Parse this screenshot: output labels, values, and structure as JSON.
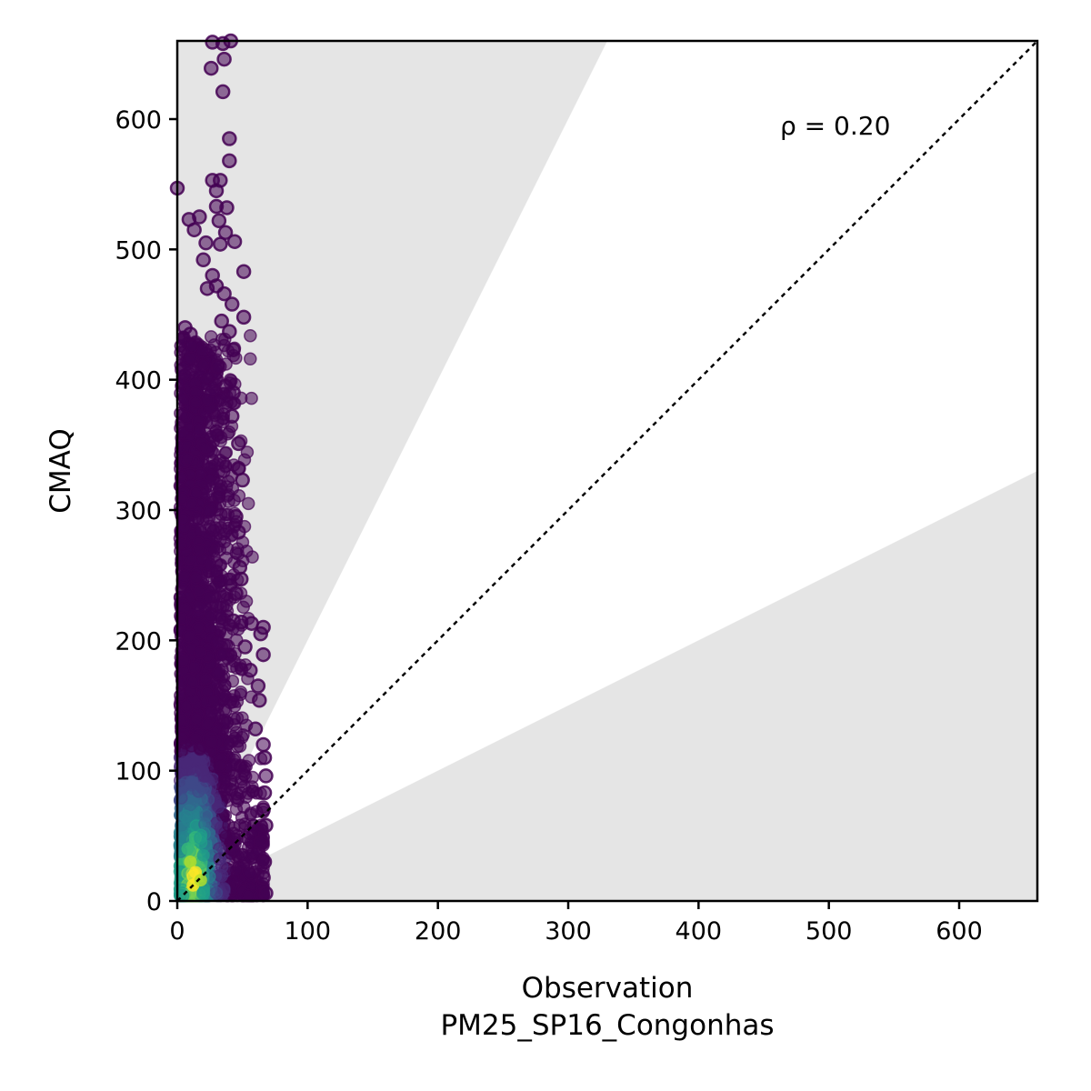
{
  "chart_data": {
    "type": "scatter",
    "title": "",
    "xlabel": "Observation",
    "xlabel_sub": "PM25_SP16_Congonhas",
    "ylabel": "CMAQ",
    "xlim": [
      0,
      660
    ],
    "ylim": [
      0,
      660
    ],
    "x_ticks": [
      0,
      100,
      200,
      300,
      400,
      500,
      600
    ],
    "y_ticks": [
      0,
      100,
      200,
      300,
      400,
      500,
      600
    ],
    "annotation": "ρ = 0.20",
    "reference_line": {
      "type": "identity",
      "style": "dotted",
      "color": "#000000"
    },
    "factor_of_two_band": {
      "upper_slope": 2,
      "lower_slope": 0.5,
      "shaded_outside": true,
      "shade_color": "#e5e5e5"
    },
    "colormap": "viridis",
    "grid": false,
    "legend": "none",
    "points": [
      {
        "x": 0,
        "y": 547,
        "density": 0
      },
      {
        "x": 9,
        "y": 523,
        "density": 0
      },
      {
        "x": 13,
        "y": 515,
        "density": 0
      },
      {
        "x": 17,
        "y": 525,
        "density": 0
      },
      {
        "x": 20,
        "y": 492,
        "density": 0
      },
      {
        "x": 27,
        "y": 553,
        "density": 0
      },
      {
        "x": 30,
        "y": 545,
        "density": 0
      },
      {
        "x": 33,
        "y": 553,
        "density": 0
      },
      {
        "x": 27,
        "y": 659,
        "density": 0
      },
      {
        "x": 35,
        "y": 658,
        "density": 0
      },
      {
        "x": 41,
        "y": 660,
        "density": 0
      },
      {
        "x": 26,
        "y": 639,
        "density": 0
      },
      {
        "x": 36,
        "y": 646,
        "density": 0
      },
      {
        "x": 35,
        "y": 621,
        "density": 0
      },
      {
        "x": 40,
        "y": 585,
        "density": 0
      },
      {
        "x": 40,
        "y": 568,
        "density": 0
      },
      {
        "x": 30,
        "y": 533,
        "density": 0
      },
      {
        "x": 38,
        "y": 532,
        "density": 0
      },
      {
        "x": 32,
        "y": 522,
        "density": 0
      },
      {
        "x": 37,
        "y": 513,
        "density": 0
      },
      {
        "x": 44,
        "y": 506,
        "density": 0
      },
      {
        "x": 22,
        "y": 505,
        "density": 0
      },
      {
        "x": 33,
        "y": 504,
        "density": 0
      },
      {
        "x": 51,
        "y": 483,
        "density": 0
      },
      {
        "x": 23,
        "y": 470,
        "density": 0
      },
      {
        "x": 27,
        "y": 480,
        "density": 0
      },
      {
        "x": 30,
        "y": 472,
        "density": 0
      },
      {
        "x": 36,
        "y": 466,
        "density": 0
      },
      {
        "x": 42,
        "y": 458,
        "density": 0
      },
      {
        "x": 51,
        "y": 448,
        "density": 0
      },
      {
        "x": 34,
        "y": 445,
        "density": 0
      },
      {
        "x": 40,
        "y": 437,
        "density": 0
      },
      {
        "x": 43,
        "y": 423,
        "density": 0
      },
      {
        "x": 6,
        "y": 440,
        "density": 0
      },
      {
        "x": 10,
        "y": 435,
        "density": 0
      },
      {
        "x": 31,
        "y": 410,
        "density": 0
      },
      {
        "x": 37,
        "y": 395,
        "density": 0
      },
      {
        "x": 43,
        "y": 390,
        "density": 0
      },
      {
        "x": 42,
        "y": 372,
        "density": 0
      },
      {
        "x": 47,
        "y": 351,
        "density": 0
      },
      {
        "x": 47,
        "y": 332,
        "density": 0
      },
      {
        "x": 50,
        "y": 323,
        "density": 0
      },
      {
        "x": 45,
        "y": 295,
        "density": 0
      },
      {
        "x": 47,
        "y": 283,
        "density": 0
      },
      {
        "x": 48,
        "y": 256,
        "density": 0
      },
      {
        "x": 49,
        "y": 247,
        "density": 0
      },
      {
        "x": 45,
        "y": 236,
        "density": 0
      },
      {
        "x": 43,
        "y": 215,
        "density": 0
      },
      {
        "x": 49,
        "y": 214,
        "density": 0
      },
      {
        "x": 57,
        "y": 213,
        "density": 0
      },
      {
        "x": 66,
        "y": 210,
        "density": 0
      },
      {
        "x": 64,
        "y": 205,
        "density": 0
      },
      {
        "x": 52,
        "y": 195,
        "density": 0
      },
      {
        "x": 66,
        "y": 189,
        "density": 0
      },
      {
        "x": 56,
        "y": 177,
        "density": 0
      },
      {
        "x": 62,
        "y": 165,
        "density": 0
      },
      {
        "x": 63,
        "y": 154,
        "density": 0
      },
      {
        "x": 60,
        "y": 132,
        "density": 0
      },
      {
        "x": 66,
        "y": 120,
        "density": 0
      },
      {
        "x": 67,
        "y": 110,
        "density": 0
      },
      {
        "x": 68,
        "y": 96,
        "density": 0
      },
      {
        "x": 67,
        "y": 83,
        "density": 0
      },
      {
        "x": 66,
        "y": 70,
        "density": 0
      },
      {
        "x": 68,
        "y": 58,
        "density": 0
      },
      {
        "x": 64,
        "y": 45,
        "density": 0
      },
      {
        "x": 67,
        "y": 30,
        "density": 0
      },
      {
        "x": 66,
        "y": 18,
        "density": 0
      },
      {
        "x": 68,
        "y": 6,
        "density": 0
      }
    ]
  }
}
